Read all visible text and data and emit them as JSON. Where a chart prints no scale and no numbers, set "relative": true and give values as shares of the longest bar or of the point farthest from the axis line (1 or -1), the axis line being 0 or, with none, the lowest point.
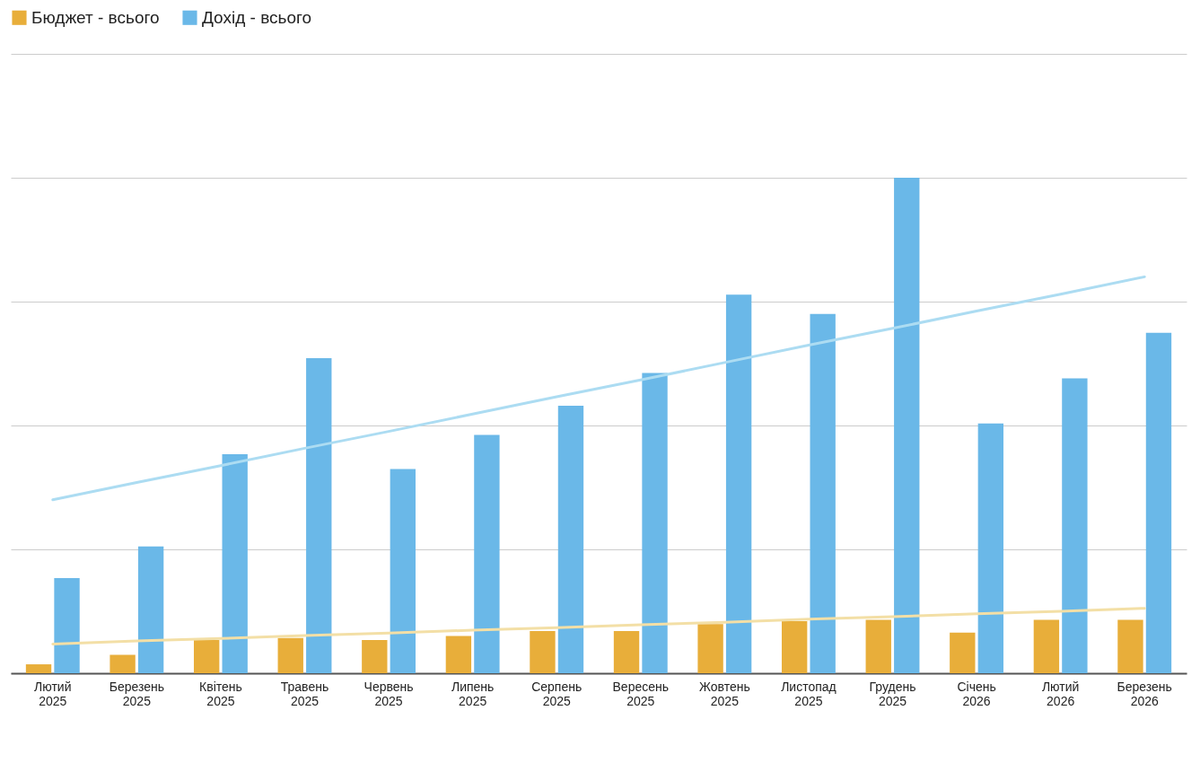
{
  "chart_data": {
    "type": "bar",
    "relative": true,
    "grid": "y",
    "legend": "top",
    "categories": [
      "Лютий 2025",
      "Березень 2025",
      "Квітень 2025",
      "Травень 2025",
      "Червень 2025",
      "Липень 2025",
      "Серпень 2025",
      "Вересень 2025",
      "Жовтень 2025",
      "Листопад 2025",
      "Грудень 2025",
      "Січень 2026",
      "Лютий 2026",
      "Березень 2026"
    ],
    "series": [
      {
        "name": "Бюджет - всього",
        "color": "#e8ae3a",
        "values": [
          0.018,
          0.037,
          0.067,
          0.071,
          0.067,
          0.075,
          0.085,
          0.085,
          0.099,
          0.105,
          0.108,
          0.082,
          0.108,
          0.108
        ]
      },
      {
        "name": "Дохід - всього",
        "color": "#6ab8e8",
        "values": [
          0.192,
          0.256,
          0.442,
          0.636,
          0.412,
          0.481,
          0.54,
          0.606,
          0.764,
          0.725,
          1,
          0.504,
          0.595,
          0.687
        ]
      },
      {
        "type": "line",
        "color": "#f3dfa6",
        "values": [
          0.059,
          0.065,
          0.07,
          0.076,
          0.081,
          0.087,
          0.092,
          0.098,
          0.103,
          0.109,
          0.114,
          0.12,
          0.125,
          0.131
        ]
      },
      {
        "type": "line",
        "color": "#acdcf2",
        "values": [
          0.35,
          0.385,
          0.419,
          0.454,
          0.488,
          0.523,
          0.558,
          0.592,
          0.627,
          0.662,
          0.696,
          0.731,
          0.765,
          0.8
        ]
      }
    ]
  }
}
